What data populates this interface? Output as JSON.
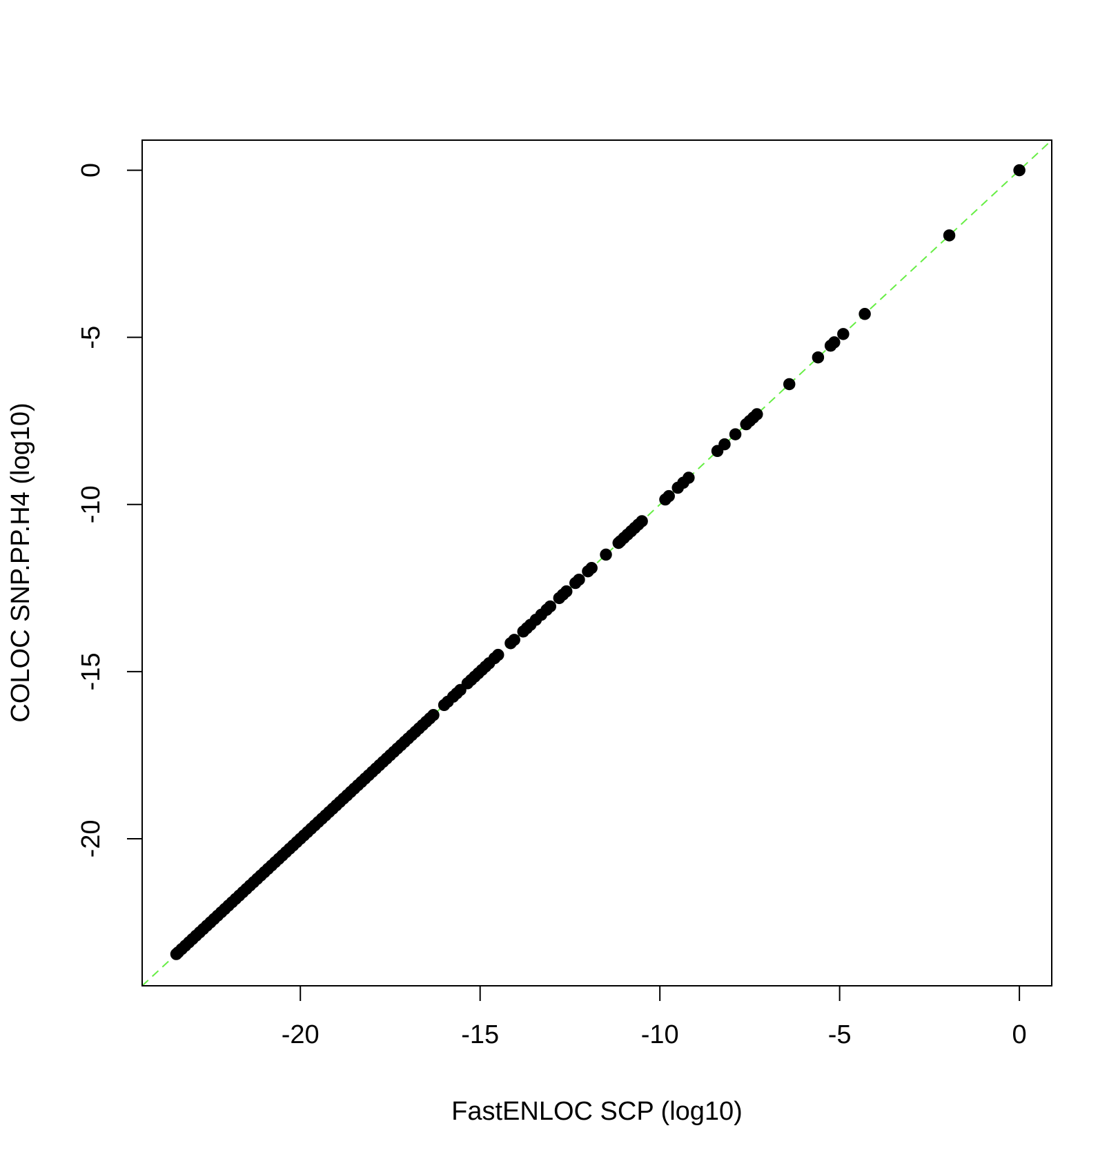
{
  "chart_data": {
    "type": "scatter",
    "title": "",
    "xlabel": "FastENLOC SCP (log10)",
    "ylabel": "COLOC SNP.PP.H4 (log10)",
    "xlim": [
      -24.4,
      0.9
    ],
    "ylim": [
      -24.4,
      0.9
    ],
    "xticks": [
      -20,
      -15,
      -10,
      -5,
      0
    ],
    "yticks": [
      0,
      -5,
      -10,
      -15,
      -20
    ],
    "grid": false,
    "legend": "none",
    "point_color": "#000000",
    "reference_line": {
      "type": "identity",
      "slope": 1,
      "intercept": 0,
      "color": "#66ee44",
      "style": "dashed"
    },
    "series": [
      {
        "x": [
          0,
          -1.95,
          -4.3,
          -4.9,
          -5.15,
          -5.25,
          -5.6,
          -6.4,
          -7.3,
          -7.4,
          -7.5,
          -7.6,
          -7.9,
          -8.2,
          -8.4,
          -9.2,
          -9.35,
          -9.5,
          -9.75,
          -9.85,
          -10.5,
          -10.6,
          -10.7,
          -10.8,
          -10.9,
          -11.0,
          -11.1,
          -11.15,
          -11.5,
          -11.9,
          -12.0,
          -12.25,
          -12.35,
          -12.6,
          -12.7,
          -12.8,
          -13.05,
          -13.15,
          -13.3,
          -13.45,
          -13.6,
          -13.7,
          -13.8,
          -14.05,
          -14.15,
          -14.5,
          -14.6,
          -14.75,
          -14.85,
          -14.95,
          -15.05,
          -15.15,
          -15.25,
          -15.35,
          -15.55,
          -15.65,
          -15.75,
          -15.9,
          -16.0,
          -16.3,
          -16.4,
          -16.5,
          -16.6,
          -16.7,
          -16.8,
          -16.9,
          -17.0,
          -17.1,
          -17.2,
          -17.3,
          -17.4,
          -17.5,
          -17.6,
          -17.7,
          -17.8,
          -17.9,
          -18.0,
          -18.1,
          -18.2,
          -18.3,
          -18.4,
          -18.5,
          -18.6,
          -18.7,
          -18.8,
          -18.9,
          -19.0,
          -19.1,
          -19.2,
          -19.3,
          -19.4,
          -19.5,
          -19.6,
          -19.7,
          -19.8,
          -19.9,
          -20.0,
          -20.1,
          -20.2,
          -20.3,
          -20.4,
          -20.5,
          -20.6,
          -20.7,
          -20.8,
          -20.9,
          -21.0,
          -21.1,
          -21.2,
          -21.3,
          -21.4,
          -21.5,
          -21.6,
          -21.7,
          -21.8,
          -21.9,
          -22.0,
          -22.1,
          -22.2,
          -22.3,
          -22.4,
          -22.5,
          -22.6,
          -22.7,
          -22.8,
          -22.9,
          -23.0,
          -23.1,
          -23.2,
          -23.3,
          -23.4,
          -23.45
        ],
        "y": [
          0,
          -1.95,
          -4.3,
          -4.9,
          -5.15,
          -5.25,
          -5.6,
          -6.4,
          -7.3,
          -7.4,
          -7.5,
          -7.6,
          -7.9,
          -8.2,
          -8.4,
          -9.2,
          -9.35,
          -9.5,
          -9.75,
          -9.85,
          -10.5,
          -10.6,
          -10.7,
          -10.8,
          -10.9,
          -11.0,
          -11.1,
          -11.15,
          -11.5,
          -11.9,
          -12.0,
          -12.25,
          -12.35,
          -12.6,
          -12.7,
          -12.8,
          -13.05,
          -13.15,
          -13.3,
          -13.45,
          -13.6,
          -13.7,
          -13.8,
          -14.05,
          -14.15,
          -14.5,
          -14.6,
          -14.75,
          -14.85,
          -14.95,
          -15.05,
          -15.15,
          -15.25,
          -15.35,
          -15.55,
          -15.65,
          -15.75,
          -15.9,
          -16.0,
          -16.3,
          -16.4,
          -16.5,
          -16.6,
          -16.7,
          -16.8,
          -16.9,
          -17.0,
          -17.1,
          -17.2,
          -17.3,
          -17.4,
          -17.5,
          -17.6,
          -17.7,
          -17.8,
          -17.9,
          -18.0,
          -18.1,
          -18.2,
          -18.3,
          -18.4,
          -18.5,
          -18.6,
          -18.7,
          -18.8,
          -18.9,
          -19.0,
          -19.1,
          -19.2,
          -19.3,
          -19.4,
          -19.5,
          -19.6,
          -19.7,
          -19.8,
          -19.9,
          -20.0,
          -20.1,
          -20.2,
          -20.3,
          -20.4,
          -20.5,
          -20.6,
          -20.7,
          -20.8,
          -20.9,
          -21.0,
          -21.1,
          -21.2,
          -21.3,
          -21.4,
          -21.5,
          -21.6,
          -21.7,
          -21.8,
          -21.9,
          -22.0,
          -22.1,
          -22.2,
          -22.3,
          -22.4,
          -22.5,
          -22.6,
          -22.7,
          -22.8,
          -22.9,
          -23.0,
          -23.1,
          -23.2,
          -23.3,
          -23.4,
          -23.45
        ]
      }
    ]
  }
}
